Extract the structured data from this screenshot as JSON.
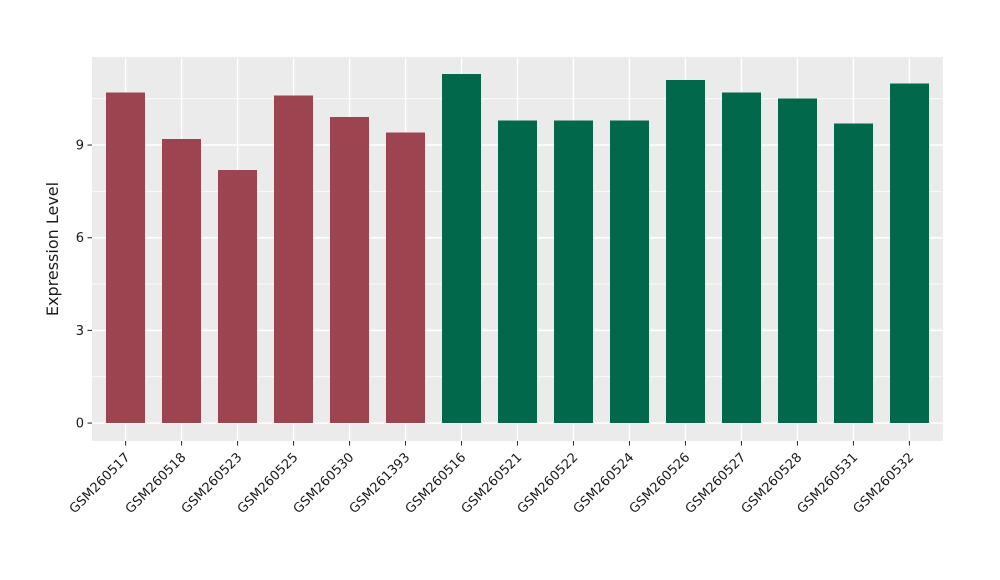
{
  "chart_data": {
    "type": "bar",
    "title": "",
    "xlabel": "",
    "ylabel": "Expression Level",
    "categories": [
      "GSM260517",
      "GSM260518",
      "GSM260523",
      "GSM260525",
      "GSM260530",
      "GSM261393",
      "GSM260516",
      "GSM260521",
      "GSM260522",
      "GSM260524",
      "GSM260526",
      "GSM260527",
      "GSM260528",
      "GSM260531",
      "GSM260532"
    ],
    "values": [
      10.7,
      9.2,
      8.2,
      10.6,
      9.9,
      9.4,
      11.3,
      9.8,
      9.8,
      9.8,
      11.1,
      10.7,
      10.5,
      9.7,
      11.0
    ],
    "bar_colors": [
      "#9C4551",
      "#9C4551",
      "#9C4551",
      "#9C4551",
      "#9C4551",
      "#9C4551",
      "#02684B",
      "#02684B",
      "#02684B",
      "#02684B",
      "#02684B",
      "#02684B",
      "#02684B",
      "#02684B",
      "#02684B"
    ],
    "color_groups": [
      {
        "name": "group-1",
        "color": "#9C4551",
        "categories": [
          "GSM260517",
          "GSM260518",
          "GSM260523",
          "GSM260525",
          "GSM260530",
          "GSM261393"
        ]
      },
      {
        "name": "group-2",
        "color": "#02684B",
        "categories": [
          "GSM260516",
          "GSM260521",
          "GSM260522",
          "GSM260524",
          "GSM260526",
          "GSM260527",
          "GSM260528",
          "GSM260531",
          "GSM260532"
        ]
      }
    ],
    "yticks": [
      0,
      3,
      6,
      9
    ],
    "minor_yticks": [
      1.5,
      4.5,
      7.5,
      10.5
    ],
    "ylim": [
      -0.58,
      11.85
    ],
    "grid": true,
    "legend": "none",
    "panel_background": "#EBEBEB",
    "grid_color": "#FFFFFF",
    "x_tick_label_rotation_deg": 45
  }
}
